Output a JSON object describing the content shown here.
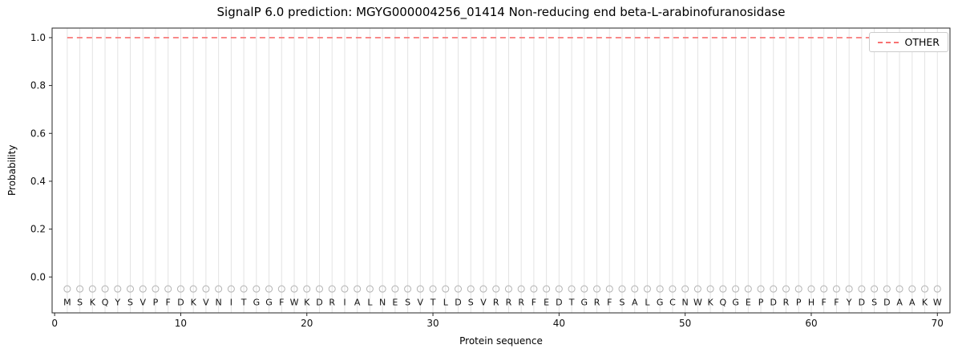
{
  "chart_data": {
    "type": "line",
    "title": "SignalP 6.0 prediction: MGYG000004256_01414 Non-reducing end beta-L-arabinofuranosidase",
    "xlabel": "Protein sequence",
    "ylabel": "Probability",
    "xlim": [
      -0.2,
      71
    ],
    "ylim": [
      -0.15,
      1.04
    ],
    "xticks": [
      0,
      10,
      20,
      30,
      40,
      50,
      60,
      70
    ],
    "yticks": [
      0.0,
      0.2,
      0.4,
      0.6,
      0.8,
      1.0
    ],
    "grid": "vertical line at every residue position",
    "legend_position": "upper right",
    "sequence": "MSKQYSVPFDKVNITGGFWKDRIALNESVTLDSVRRRFEDTGRFSALGCNWKQGEPDRPHFFYDSDAAKW",
    "marker_row": {
      "y": -0.05,
      "shape": "open-circle"
    },
    "letters_y": -0.105,
    "series": [
      {
        "name": "OTHER",
        "line_style": "dashed",
        "color": "#f87171",
        "x_start": 1,
        "x_end": 70,
        "values": [
          1.0,
          1.0,
          1.0,
          1.0,
          1.0,
          1.0,
          1.0,
          1.0,
          1.0,
          1.0,
          1.0,
          1.0,
          1.0,
          1.0,
          1.0,
          1.0,
          1.0,
          1.0,
          1.0,
          1.0,
          1.0,
          1.0,
          1.0,
          1.0,
          1.0,
          1.0,
          1.0,
          1.0,
          1.0,
          1.0,
          1.0,
          1.0,
          1.0,
          1.0,
          1.0,
          1.0,
          1.0,
          1.0,
          1.0,
          1.0,
          1.0,
          1.0,
          1.0,
          1.0,
          1.0,
          1.0,
          1.0,
          1.0,
          1.0,
          1.0,
          1.0,
          1.0,
          1.0,
          1.0,
          1.0,
          1.0,
          1.0,
          1.0,
          1.0,
          1.0,
          1.0,
          1.0,
          1.0,
          1.0,
          1.0,
          1.0,
          1.0,
          1.0,
          1.0,
          1.0
        ]
      }
    ],
    "colors": {
      "line": "#f87171",
      "grid": "#e3e3e3",
      "frame": "#262626",
      "marker": "#b3b3b3",
      "text": "#000000"
    }
  }
}
